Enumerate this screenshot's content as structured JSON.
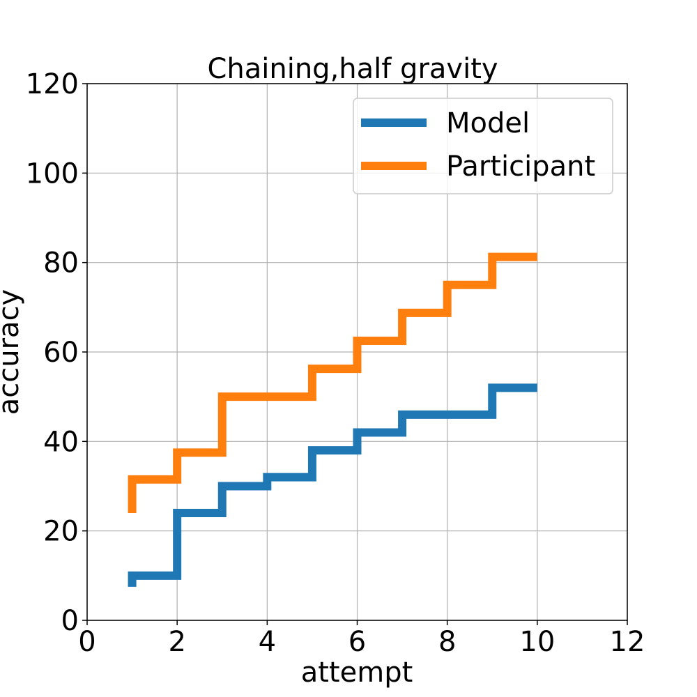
{
  "chart_data": {
    "type": "line",
    "step": "post",
    "title": "Chaining,half gravity",
    "xlabel": "attempt",
    "ylabel": "accuracy",
    "xlim": [
      0,
      12
    ],
    "ylim": [
      0,
      120
    ],
    "xticks": [
      0,
      2,
      4,
      6,
      8,
      10,
      12
    ],
    "yticks": [
      0,
      20,
      40,
      60,
      80,
      100,
      120
    ],
    "xtick_labels": [
      "0",
      "2",
      "4",
      "6",
      "8",
      "10",
      "12"
    ],
    "ytick_labels": [
      "0",
      "20",
      "40",
      "60",
      "80",
      "100",
      "120"
    ],
    "grid": true,
    "legend_position": "top-right",
    "x": [
      1,
      2,
      3,
      4,
      5,
      6,
      7,
      8,
      9,
      10
    ],
    "series": [
      {
        "name": "Model",
        "color": "#1f77b4",
        "start": 7.5,
        "values": [
          10,
          24,
          30,
          32,
          38,
          42,
          46,
          46,
          52,
          52
        ]
      },
      {
        "name": "Participant",
        "color": "#ff7f0e",
        "start": 24,
        "values": [
          31.5,
          37.5,
          50,
          50,
          56.25,
          62.5,
          68.75,
          75,
          81.25,
          81.25
        ]
      }
    ]
  }
}
